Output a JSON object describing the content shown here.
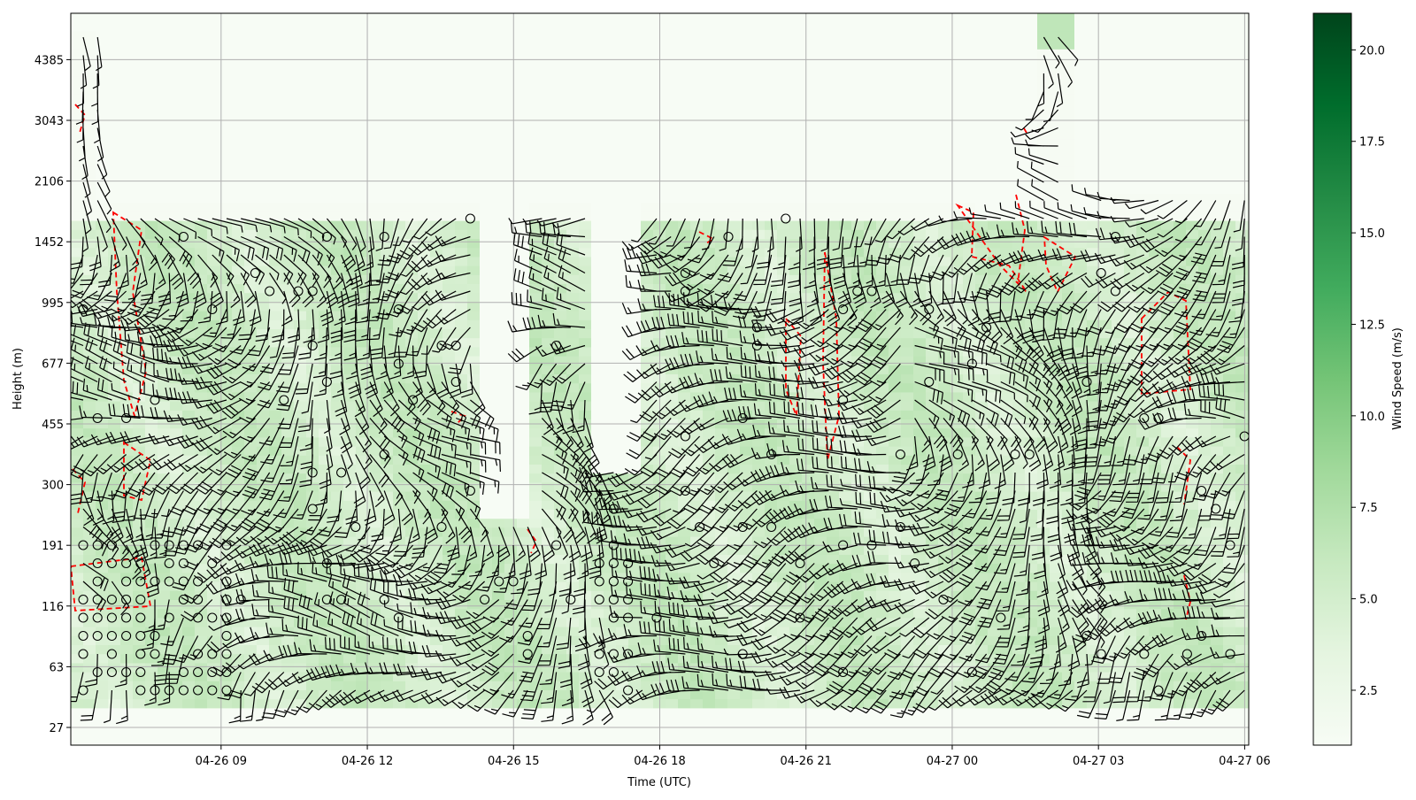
{
  "chart_data": {
    "type": "heatmap",
    "xlabel": "Time (UTC)",
    "ylabel": "Height (m)",
    "colorbar_label": "Wind Speed (m/s)",
    "colormap": "Greens",
    "colorbar_range": [
      1.0,
      21.0
    ],
    "colorbar_ticks": [
      "2.5",
      "5.0",
      "7.5",
      "10.0",
      "12.5",
      "15.0",
      "17.5",
      "20.0"
    ],
    "x_range": [
      "2026-04-26 05:55",
      "2026-04-27 06:05"
    ],
    "x_ticks": [
      {
        "label": "04-26 09",
        "time": "2026-04-26 09:00"
      },
      {
        "label": "04-26 12",
        "time": "2026-04-26 12:00"
      },
      {
        "label": "04-26 15",
        "time": "2026-04-26 15:00"
      },
      {
        "label": "04-26 18",
        "time": "2026-04-26 18:00"
      },
      {
        "label": "04-26 21",
        "time": "2026-04-26 21:00"
      },
      {
        "label": "04-27 00",
        "time": "2026-04-27 00:00"
      },
      {
        "label": "04-27 03",
        "time": "2026-04-27 03:00"
      },
      {
        "label": "04-27 06",
        "time": "2026-04-27 06:00"
      }
    ],
    "y_ticks": [
      "27",
      "63",
      "116",
      "191",
      "300",
      "455",
      "677",
      "995",
      "1452",
      "2106",
      "3043",
      "4385"
    ],
    "grid": true,
    "overlays": [
      "wind barbs",
      "calm-wind circles",
      "red dashed contour"
    ],
    "colors": {
      "contour": "#ff0000",
      "barb": "#000000",
      "grid": "#b0b0b0"
    }
  }
}
